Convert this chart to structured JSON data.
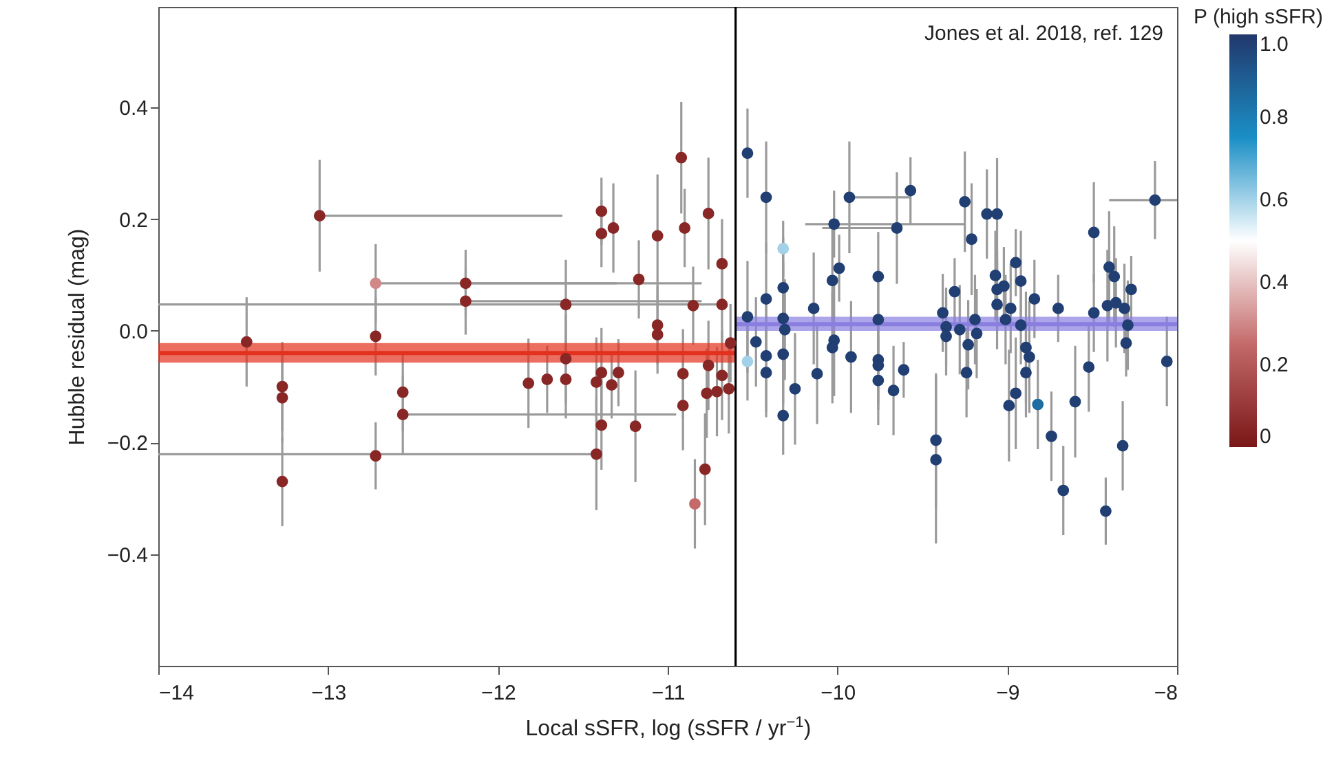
{
  "chart_data": {
    "type": "scatter",
    "xlabel": "Local sSFR, log (sSFR / yr$^{−1}$)",
    "ylabel": "Hubble residual (mag)",
    "clabel": "P (high sSFR)",
    "annotations": [
      "Jones et al. 2018, ref. 129"
    ],
    "xlim": [
      -14,
      -8
    ],
    "xticks": [
      -14,
      -13,
      -12,
      -11,
      -10,
      -9,
      -8
    ],
    "ylim": [
      -0.6,
      0.58
    ],
    "yticks": [
      -0.4,
      -0.2,
      {
        "value": 0,
        "label": "0.0"
      },
      0.2,
      0.4
    ],
    "clim": [
      0,
      1
    ],
    "cticks": [
      0,
      0.2,
      0.4,
      0.6,
      0.8,
      {
        "value": 1,
        "label": "1.0"
      }
    ],
    "grid": false,
    "marker": "circle",
    "ref_lines": [
      {
        "axis": "x",
        "value": -10.6,
        "color": "#000000"
      }
    ],
    "series": [
      {
        "x": [
          -13.05,
          -12.72,
          -12.56,
          -12.19,
          -12.19,
          -10.68,
          -11.42,
          -9.93,
          -10.02,
          -9.65,
          -8.13
        ],
        "values": [
          0.206,
          0.085,
          -0.15,
          0.085,
          0.053,
          0.047,
          -0.221,
          0.239,
          0.191,
          0.184,
          0.234
        ],
        "errors": [
          0.1,
          0.07,
          0.07,
          0.06,
          0.06,
          0.07,
          0.1,
          0.1,
          0.06,
          0.1,
          0.07
        ],
        "xerrors": [
          [
            -13.05,
            -11.62
          ],
          [
            -12.72,
            -11.3
          ],
          [
            -12.56,
            -10.95
          ],
          [
            -12.19,
            -10.8
          ],
          [
            -12.19,
            -10.8
          ],
          [
            -14,
            -10.68
          ],
          [
            -14,
            -11.42
          ],
          [
            -9.93,
            -9.57
          ],
          [
            -10.19,
            -9.25
          ],
          [
            -10.09,
            -9.65
          ],
          [
            -8.4,
            -8.0
          ]
        ],
        "cvalues": [
          0.05,
          0.3,
          0.05,
          0.05,
          0.05,
          0.05,
          0.05,
          0.98,
          0.98,
          0.98,
          0.98
        ],
        "colors": [
          "#892727",
          "#d08888",
          "#892727",
          "#892727",
          "#892727",
          "#892727",
          "#892727",
          "#213f73",
          "#213f73",
          "#213f73",
          "#213f73"
        ]
      },
      {
        "x": [
          -13.48,
          -13.27,
          -13.27,
          -13.27,
          -12.72,
          -12.72,
          -12.56,
          -10.92,
          -10.76,
          -11.39,
          -11.39,
          -11.32,
          -11.06,
          -10.9,
          -10.68,
          -11.17,
          -11.6,
          -10.85,
          -11.06,
          -11.06,
          -11.6,
          -11.82,
          -11.71,
          -11.6,
          -11.39,
          -11.42,
          -11.29,
          -11.33,
          -10.91,
          -10.91,
          -11.39,
          -11.19,
          -10.78,
          -10.84,
          -10.76,
          -10.68,
          -10.77,
          -10.71,
          -10.64,
          -10.63
        ],
        "values": [
          -0.02,
          -0.1,
          -0.12,
          -0.27,
          -0.01,
          -0.224,
          -0.11,
          0.31,
          0.21,
          0.214,
          0.174,
          0.184,
          0.17,
          0.184,
          0.12,
          0.092,
          0.047,
          0.045,
          0.01,
          -0.007,
          -0.05,
          -0.094,
          -0.087,
          -0.087,
          -0.075,
          -0.092,
          -0.075,
          -0.097,
          -0.077,
          -0.134,
          -0.169,
          -0.171,
          -0.248,
          -0.31,
          -0.062,
          -0.08,
          -0.112,
          -0.109,
          -0.104,
          -0.022
        ],
        "errors": [
          0.08,
          0.08,
          0.08,
          0.08,
          0.07,
          0.06,
          0.07,
          0.1,
          0.1,
          0.06,
          0.06,
          0.08,
          0.11,
          0.07,
          0.08,
          0.07,
          0.08,
          0.07,
          0.07,
          0.07,
          0.08,
          0.08,
          0.06,
          0.07,
          0.08,
          0.08,
          0.06,
          0.06,
          0.08,
          0.08,
          0.08,
          0.1,
          0.1,
          0.08,
          0.08,
          0.08,
          0.08,
          0.08,
          0.08,
          0.07
        ],
        "cvalues": [
          0.05,
          0.05,
          0.05,
          0.05,
          0.05,
          0.05,
          0.05,
          0.05,
          0.05,
          0.05,
          0.05,
          0.05,
          0.05,
          0.05,
          0.05,
          0.05,
          0.05,
          0.05,
          0.05,
          0.05,
          0.05,
          0.05,
          0.05,
          0.05,
          0.05,
          0.05,
          0.05,
          0.05,
          0.05,
          0.05,
          0.05,
          0.05,
          0.05,
          0.25,
          0.05,
          0.05,
          0.05,
          0.05,
          0.05,
          0.05
        ],
        "colors": [
          "#892727",
          "#892727",
          "#892727",
          "#892727",
          "#892727",
          "#892727",
          "#892727",
          "#892727",
          "#892727",
          "#892727",
          "#892727",
          "#892727",
          "#892727",
          "#892727",
          "#892727",
          "#892727",
          "#892727",
          "#892727",
          "#892727",
          "#892727",
          "#892727",
          "#892727",
          "#892727",
          "#892727",
          "#892727",
          "#892727",
          "#892727",
          "#892727",
          "#892727",
          "#892727",
          "#892727",
          "#892727",
          "#892727",
          "#c46a6a",
          "#892727",
          "#892727",
          "#892727",
          "#892727",
          "#892727",
          "#892727"
        ]
      },
      {
        "x": [
          -10.53,
          -10.42,
          -9.57,
          -9.25,
          -10.32,
          -9.99,
          -10.03,
          -9.76,
          -10.32,
          -10.42,
          -9.31,
          -10.14,
          -10.53,
          -10.32,
          -10.31,
          -9.76,
          -9.38,
          -9.36,
          -9.36,
          -9.28,
          -10.48,
          -10.42,
          -10.32,
          -10.02,
          -10.03,
          -9.92,
          -9.76,
          -9.76,
          -9.61,
          -10.42,
          -10.12,
          -9.76,
          -9.67,
          -10.25,
          -10.32,
          -9.42,
          -9.42,
          -10.53,
          -9.24,
          -9.12,
          -9.06,
          -9.21,
          -8.49,
          -8.95,
          -9.07,
          -8.92,
          -9.06,
          -9.02,
          -9.06,
          -8.84,
          -8.4,
          -8.37,
          -8.27,
          -8.98,
          -8.7,
          -8.49,
          -8.41,
          -8.36,
          -8.31,
          -9.01,
          -9.19,
          -9.18,
          -8.92,
          -8.29,
          -9.23,
          -8.89,
          -8.87,
          -8.3,
          -8.06,
          -8.52,
          -8.89,
          -8.95,
          -8.99,
          -8.82,
          -8.6,
          -8.74,
          -8.32,
          -8.67,
          -8.42
        ],
        "values": [
          0.318,
          0.239,
          0.251,
          0.231,
          0.147,
          0.112,
          0.09,
          0.097,
          0.077,
          0.057,
          0.07,
          0.04,
          0.025,
          0.022,
          0.002,
          0.02,
          0.032,
          0.007,
          -0.01,
          0.002,
          -0.02,
          -0.045,
          -0.042,
          -0.017,
          -0.03,
          -0.047,
          -0.052,
          -0.062,
          -0.07,
          -0.075,
          -0.077,
          -0.089,
          -0.107,
          -0.104,
          -0.152,
          -0.196,
          -0.231,
          -0.055,
          -0.075,
          0.209,
          0.209,
          0.164,
          0.176,
          0.122,
          0.099,
          0.089,
          0.074,
          0.08,
          0.047,
          0.057,
          0.114,
          0.097,
          0.074,
          0.04,
          0.04,
          0.032,
          0.045,
          0.05,
          0.04,
          0.02,
          0.02,
          -0.005,
          0.01,
          0.01,
          -0.025,
          -0.03,
          -0.047,
          -0.022,
          -0.055,
          -0.065,
          -0.075,
          -0.112,
          -0.134,
          -0.132,
          -0.127,
          -0.189,
          -0.206,
          -0.286,
          -0.323
        ],
        "errors": [
          0.08,
          0.1,
          0.06,
          0.09,
          0.05,
          0.06,
          0.1,
          0.08,
          0.09,
          0.1,
          0.06,
          0.1,
          0.1,
          0.1,
          0.09,
          0.09,
          0.07,
          0.07,
          0.07,
          0.08,
          0.08,
          0.1,
          0.09,
          0.1,
          0.1,
          0.1,
          0.08,
          0.08,
          0.05,
          0.08,
          0.09,
          0.08,
          0.08,
          0.1,
          0.07,
          0.12,
          0.15,
          0.07,
          0.08,
          0.08,
          0.1,
          0.1,
          0.09,
          0.06,
          0.08,
          0.09,
          0.07,
          0.07,
          0.08,
          0.07,
          0.1,
          0.09,
          0.06,
          0.08,
          0.06,
          0.07,
          0.1,
          0.08,
          0.08,
          0.08,
          0.08,
          0.08,
          0.07,
          0.08,
          0.08,
          0.1,
          0.1,
          0.06,
          0.08,
          0.08,
          0.08,
          0.1,
          0.1,
          0.08,
          0.1,
          0.08,
          0.08,
          0.08,
          0.06
        ],
        "cvalues": [
          0.98,
          0.98,
          0.98,
          0.98,
          0.6,
          0.98,
          0.98,
          0.98,
          0.98,
          0.98,
          0.98,
          0.98,
          0.98,
          0.98,
          0.98,
          0.98,
          0.98,
          0.98,
          0.98,
          0.98,
          0.98,
          0.98,
          0.98,
          0.98,
          0.98,
          0.98,
          0.98,
          0.98,
          0.98,
          0.98,
          0.98,
          0.98,
          0.98,
          0.98,
          0.98,
          0.98,
          0.98,
          0.6,
          0.98,
          0.98,
          0.98,
          0.98,
          0.98,
          0.98,
          0.98,
          0.98,
          0.98,
          0.98,
          0.98,
          0.98,
          0.98,
          0.98,
          0.98,
          0.98,
          0.98,
          0.98,
          0.98,
          0.98,
          0.98,
          0.98,
          0.98,
          0.98,
          0.98,
          0.98,
          0.98,
          0.98,
          0.98,
          0.98,
          0.98,
          0.98,
          0.98,
          0.98,
          0.98,
          0.85,
          0.98,
          0.98,
          0.98,
          0.98,
          0.98
        ],
        "colors": [
          "#213f73",
          "#213f73",
          "#213f73",
          "#213f73",
          "#a3d2e8",
          "#213f73",
          "#213f73",
          "#213f73",
          "#213f73",
          "#213f73",
          "#213f73",
          "#213f73",
          "#213f73",
          "#213f73",
          "#213f73",
          "#213f73",
          "#213f73",
          "#213f73",
          "#213f73",
          "#213f73",
          "#213f73",
          "#213f73",
          "#213f73",
          "#213f73",
          "#213f73",
          "#213f73",
          "#213f73",
          "#213f73",
          "#213f73",
          "#213f73",
          "#213f73",
          "#213f73",
          "#213f73",
          "#213f73",
          "#213f73",
          "#213f73",
          "#213f73",
          "#a3d2e8",
          "#213f73",
          "#213f73",
          "#213f73",
          "#213f73",
          "#213f73",
          "#213f73",
          "#213f73",
          "#213f73",
          "#213f73",
          "#213f73",
          "#213f73",
          "#213f73",
          "#213f73",
          "#213f73",
          "#213f73",
          "#213f73",
          "#213f73",
          "#213f73",
          "#213f73",
          "#213f73",
          "#213f73",
          "#213f73",
          "#213f73",
          "#213f73",
          "#213f73",
          "#213f73",
          "#213f73",
          "#213f73",
          "#213f73",
          "#213f73",
          "#213f73",
          "#213f73",
          "#213f73",
          "#213f73",
          "#213f73",
          "#1d6ca2",
          "#213f73",
          "#213f73",
          "#213f73",
          "#213f73",
          "#213f73"
        ]
      },
      {
        "type": "line",
        "marker": "none",
        "color": "#e2311d",
        "x": [
          -14,
          -10.6
        ],
        "values": [
          -0.04,
          -0.04
        ],
        "lower": [
          -0.057,
          -0.057
        ],
        "upper": [
          -0.022,
          -0.022
        ]
      },
      {
        "type": "line",
        "marker": "none",
        "color": "#8a7fe0",
        "x": [
          -10.6,
          -8
        ],
        "values": [
          0.012,
          0.012
        ],
        "lower": [
          0.0,
          0.0
        ],
        "upper": [
          0.025,
          0.025
        ]
      }
    ]
  }
}
